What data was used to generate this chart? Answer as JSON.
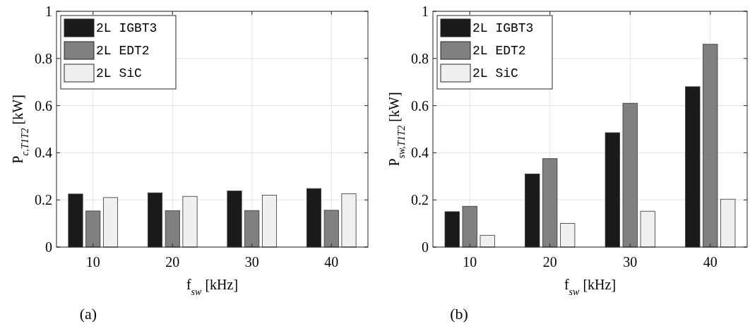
{
  "chart_data": [
    {
      "type": "bar",
      "categories": [
        "10",
        "20",
        "30",
        "40"
      ],
      "xlabel": "f$_{sw}$ [kHz]",
      "ylabel": "P$_{c,T1T2}$ [kW]",
      "ylim": [
        0,
        1
      ],
      "yticks": [
        0,
        0.2,
        0.4,
        0.6,
        0.8,
        1
      ],
      "grid": true,
      "legend": "top left",
      "annotations": [
        "(a)"
      ],
      "series": [
        {
          "name": "2L IGBT3",
          "color": "#1a1a1a",
          "values": [
            0.225,
            0.23,
            0.238,
            0.248
          ]
        },
        {
          "name": "2L EDT2",
          "color": "#808080",
          "values": [
            0.153,
            0.154,
            0.155,
            0.156
          ]
        },
        {
          "name": "2L SiC",
          "color": "#f0f0f0",
          "values": [
            0.21,
            0.215,
            0.22,
            0.226
          ]
        }
      ]
    },
    {
      "type": "bar",
      "categories": [
        "10",
        "20",
        "30",
        "40"
      ],
      "xlabel": "f$_{sw}$ [kHz]",
      "ylabel": "P$_{sw,T1T2}$ [kW]",
      "ylim": [
        0,
        1
      ],
      "yticks": [
        0,
        0.2,
        0.4,
        0.6,
        0.8,
        1
      ],
      "grid": true,
      "legend": "top left",
      "annotations": [
        "(b)"
      ],
      "series": [
        {
          "name": "2L IGBT3",
          "color": "#1a1a1a",
          "values": [
            0.15,
            0.31,
            0.485,
            0.68
          ]
        },
        {
          "name": "2L EDT2",
          "color": "#808080",
          "values": [
            0.173,
            0.375,
            0.61,
            0.86
          ]
        },
        {
          "name": "2L SiC",
          "color": "#f0f0f0",
          "values": [
            0.05,
            0.1,
            0.152,
            0.203
          ]
        }
      ]
    }
  ]
}
